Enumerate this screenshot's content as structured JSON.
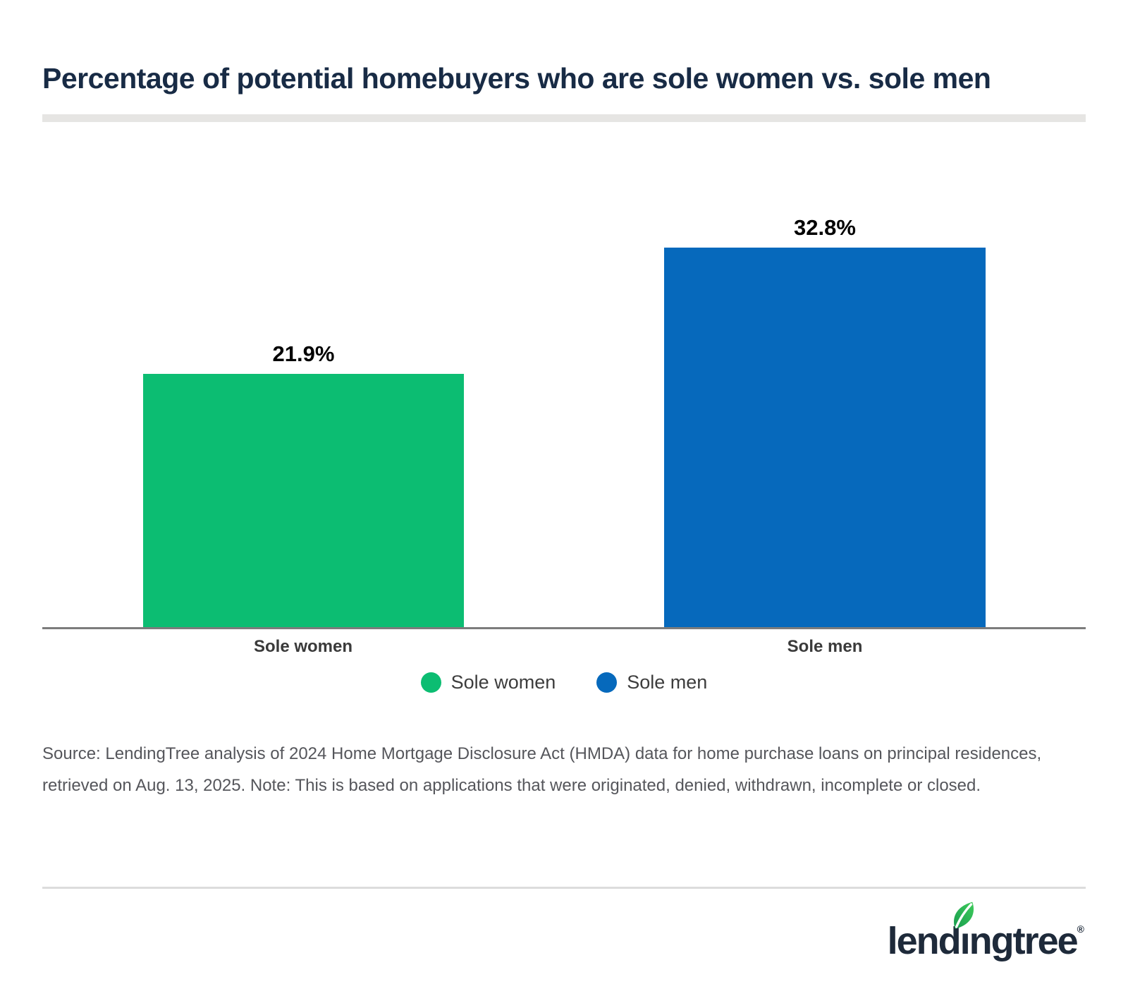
{
  "page": {
    "title": "Percentage of potential homebuyers who are sole women vs. sole men",
    "source_note": "Source: LendingTree analysis of 2024 Home Mortgage Disclosure Act (HMDA) data for home purchase loans on principal residences, retrieved on Aug. 13, 2025. Note: This is based on applications that were originated, denied, withdrawn, incomplete or closed.",
    "brand": {
      "logo_text": "lendingtree",
      "registered_mark": "®",
      "navy": "#1e2a3a",
      "leaf_green_dark": "#179c4e",
      "leaf_green_light": "#3fcb5b"
    }
  },
  "chart_data": {
    "type": "bar",
    "title": "Percentage of potential homebuyers who are sole women vs. sole men",
    "categories": [
      "Sole women",
      "Sole men"
    ],
    "values": [
      21.9,
      32.8
    ],
    "value_labels": [
      "21.9%",
      "32.8%"
    ],
    "series_colors": [
      "#0cbd72",
      "#0669bc"
    ],
    "legend": [
      {
        "label": "Sole women",
        "color": "#0cbd72"
      },
      {
        "label": "Sole men",
        "color": "#0669bc"
      }
    ],
    "legend_position": "bottom",
    "grid": false,
    "xlabel": "",
    "ylabel": "",
    "ylim": [
      0,
      42
    ],
    "axis_color": "#7c7c7c"
  }
}
